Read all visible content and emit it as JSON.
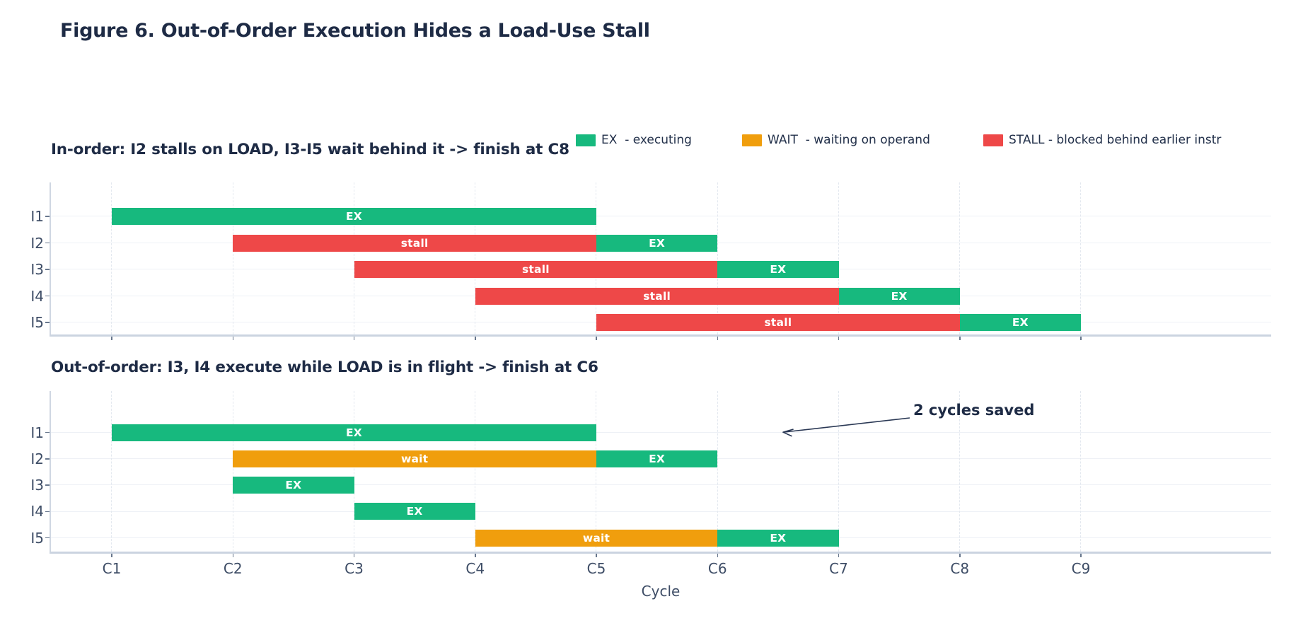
{
  "title": "Figure 6. Out-of-Order Execution Hides a Load-Use Stall",
  "legend": {
    "items": [
      {
        "key": "EX",
        "label": "EX  - executing",
        "color": "#17b97e"
      },
      {
        "key": "WAIT",
        "label": "WAIT  - waiting on operand",
        "color": "#f09e0d"
      },
      {
        "key": "STALL",
        "label": "STALL - blocked behind earlier instr",
        "color": "#ee4848"
      }
    ]
  },
  "xaxis": {
    "label": "Cycle",
    "ticks": [
      "C1",
      "C2",
      "C3",
      "C4",
      "C5",
      "C6",
      "C7",
      "C8",
      "C9"
    ],
    "range": [
      0.5,
      10.57
    ]
  },
  "colors": {
    "EX": "#17b97e",
    "WAIT": "#f09e0d",
    "STALL": "#ee4848",
    "heading_text": "#1e2b45",
    "axis_text": "#3e4d66"
  },
  "chart_data": [
    {
      "type": "bar",
      "variant": "gantt",
      "title": "In-order: I2 stalls on LOAD, I3-I5 wait behind it -> finish at C8",
      "rows": [
        "I1",
        "I2",
        "I3",
        "I4",
        "I5"
      ],
      "grid": "on",
      "bars": [
        {
          "row": "I1",
          "start": 1,
          "end": 5,
          "state": "EX",
          "label": "EX"
        },
        {
          "row": "I2",
          "start": 2,
          "end": 5,
          "state": "STALL",
          "label": "stall"
        },
        {
          "row": "I2",
          "start": 5,
          "end": 6,
          "state": "EX",
          "label": "EX"
        },
        {
          "row": "I3",
          "start": 3,
          "end": 6,
          "state": "STALL",
          "label": "stall"
        },
        {
          "row": "I3",
          "start": 6,
          "end": 7,
          "state": "EX",
          "label": "EX"
        },
        {
          "row": "I4",
          "start": 4,
          "end": 7,
          "state": "STALL",
          "label": "stall"
        },
        {
          "row": "I4",
          "start": 7,
          "end": 8,
          "state": "EX",
          "label": "EX"
        },
        {
          "row": "I5",
          "start": 5,
          "end": 8,
          "state": "STALL",
          "label": "stall"
        },
        {
          "row": "I5",
          "start": 8,
          "end": 9,
          "state": "EX",
          "label": "EX"
        }
      ]
    },
    {
      "type": "bar",
      "variant": "gantt",
      "title": "Out-of-order: I3, I4 execute while LOAD is in flight -> finish at C6",
      "rows": [
        "I1",
        "I2",
        "I3",
        "I4",
        "I5"
      ],
      "grid": "on",
      "bars": [
        {
          "row": "I1",
          "start": 1,
          "end": 5,
          "state": "EX",
          "label": "EX"
        },
        {
          "row": "I2",
          "start": 2,
          "end": 5,
          "state": "WAIT",
          "label": "wait"
        },
        {
          "row": "I2",
          "start": 5,
          "end": 6,
          "state": "EX",
          "label": "EX"
        },
        {
          "row": "I3",
          "start": 2,
          "end": 3,
          "state": "EX",
          "label": "EX"
        },
        {
          "row": "I4",
          "start": 3,
          "end": 4,
          "state": "EX",
          "label": "EX"
        },
        {
          "row": "I5",
          "start": 4,
          "end": 6,
          "state": "WAIT",
          "label": "wait"
        },
        {
          "row": "I5",
          "start": 6,
          "end": 7,
          "state": "EX",
          "label": "EX"
        }
      ],
      "annotation": {
        "text": "2 cycles saved"
      }
    }
  ]
}
